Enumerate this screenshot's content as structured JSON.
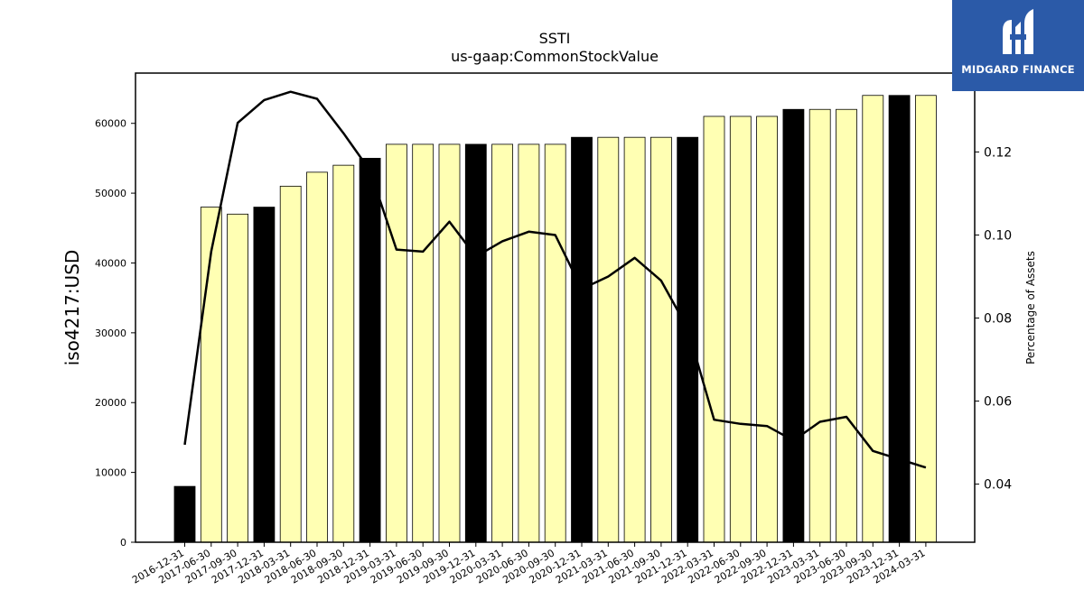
{
  "chart_data": {
    "type": "bar+line",
    "title": "SSTI",
    "subtitle": "us-gaap:CommonStockValue",
    "ylabel": "iso4217:USD",
    "y2label": "Percentage of Assets",
    "ylim": [
      0,
      67200
    ],
    "y2lim": [
      0.026,
      0.139
    ],
    "yticks": [
      "0",
      "10000",
      "20000",
      "30000",
      "40000",
      "50000",
      "60000"
    ],
    "y2ticks": [
      "0.04",
      "0.06",
      "0.08",
      "0.10",
      "0.12"
    ],
    "categories": [
      "2016-12-31",
      "2017-06-30",
      "2017-09-30",
      "2017-12-31",
      "2018-03-31",
      "2018-06-30",
      "2018-09-30",
      "2018-12-31",
      "2019-03-31",
      "2019-06-30",
      "2019-09-30",
      "2019-12-31",
      "2020-03-31",
      "2020-06-30",
      "2020-09-30",
      "2020-12-31",
      "2021-03-31",
      "2021-06-30",
      "2021-09-30",
      "2021-12-31",
      "2022-03-31",
      "2022-06-30",
      "2022-09-30",
      "2022-12-31",
      "2023-03-31",
      "2023-06-30",
      "2023-09-30",
      "2023-12-31",
      "2024-03-31"
    ],
    "series": [
      {
        "kind": "bar",
        "values": [
          8000,
          48000,
          47000,
          48000,
          51000,
          53000,
          54000,
          55000,
          57000,
          57000,
          57000,
          57000,
          57000,
          57000,
          57000,
          58000,
          58000,
          58000,
          58000,
          58000,
          61000,
          61000,
          61000,
          62000,
          62000,
          62000,
          64000,
          64000,
          64000
        ],
        "highlight": [
          true,
          false,
          false,
          true,
          false,
          false,
          false,
          true,
          false,
          false,
          false,
          true,
          false,
          false,
          false,
          true,
          false,
          false,
          false,
          true,
          false,
          false,
          false,
          true,
          false,
          false,
          false,
          true,
          false
        ]
      },
      {
        "kind": "line",
        "axis": "right",
        "values": [
          0.0495,
          0.096,
          0.127,
          0.1325,
          0.1345,
          0.1328,
          0.1245,
          0.1155,
          0.0965,
          0.096,
          0.1032,
          0.0948,
          0.0985,
          0.1008,
          0.1,
          0.087,
          0.09,
          0.0945,
          0.089,
          0.0775,
          0.0555,
          0.0545,
          0.054,
          0.0505,
          0.055,
          0.0562,
          0.048,
          0.046,
          0.044
        ]
      }
    ],
    "colors": {
      "bar": "#ffffb3",
      "bar_highlight": "#000000",
      "line": "#000000"
    }
  },
  "logo": {
    "text": "MIDGARD FINANCE"
  }
}
